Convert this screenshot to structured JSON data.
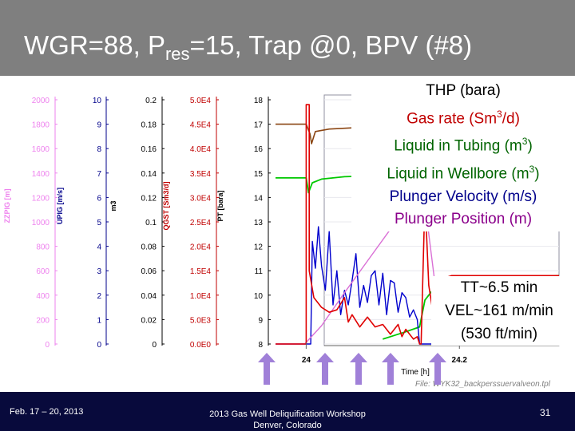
{
  "slide": {
    "title_main": "WGR=88, P",
    "title_sub": "res",
    "title_rest": "=15, Trap @0, BPV (#8)"
  },
  "legend": [
    {
      "text": "THP (bara)",
      "color": "#000000"
    },
    {
      "text": "Gas rate (Sm",
      "sup": "3",
      "tail": "/d)",
      "color": "#c00000"
    },
    {
      "text": "Liquid in Tubing (m",
      "sup": "3",
      "tail": ")",
      "color": "#006400"
    },
    {
      "text": "Liquid in Wellbore (m",
      "sup": "3",
      "tail": ")",
      "color": "#006400"
    },
    {
      "text": "Plunger Velocity (m/s)",
      "color": "#00008b"
    },
    {
      "text": "Plunger Position (m)",
      "color": "#8b008b"
    }
  ],
  "annotation": {
    "line1": "TT~6.5 min",
    "line2": "VEL~161 m/min",
    "line3": "(530 ft/min)"
  },
  "file_label": "File: WYK32_backperssuervalveon.tpl",
  "footer": {
    "date": "Feb. 17 – 20, 2013",
    "workshop": "2013 Gas Well Deliquification Workshop",
    "location": "Denver, Colorado",
    "page": "31"
  },
  "colors": {
    "header_bg": "#7f7f7f",
    "footer_bg": "#080a3c",
    "zzpig": "#ee82ee",
    "upig": "#00008b",
    "m3": "#000000",
    "qgst": "#c00000",
    "pt": "#000000",
    "thp": "#8b4513",
    "gas": "#e00000",
    "liquid": "#00c800",
    "velocity": "#0000cd",
    "position": "#da70d6",
    "arrow": "#a080d8"
  },
  "chart_data": {
    "type": "line",
    "xlabel": "Time [h]",
    "x_ticks": [
      "24",
      "24.2"
    ],
    "xlim": [
      23.96,
      24.33
    ],
    "axes": [
      {
        "id": "zzpig",
        "label": "ZZPIG [m]",
        "ticks": [
          "0",
          "200",
          "400",
          "600",
          "800",
          "1000",
          "1200",
          "1400",
          "1600",
          "1800",
          "2000"
        ],
        "range": [
          0,
          2000
        ]
      },
      {
        "id": "upig",
        "label": "UPIG [m/s]",
        "ticks": [
          "0",
          "1",
          "2",
          "3",
          "4",
          "5",
          "6",
          "7",
          "8",
          "9",
          "10"
        ],
        "range": [
          0,
          10
        ]
      },
      {
        "id": "m3",
        "label": "m3",
        "ticks": [
          "0",
          "0.02",
          "0.04",
          "0.06",
          "0.08",
          "0.1",
          "0.12",
          "0.14",
          "0.16",
          "0.18",
          "0.2"
        ],
        "range": [
          0,
          0.2
        ]
      },
      {
        "id": "qgst",
        "label": "QGST [Sm3/d]",
        "ticks": [
          "0.0E0",
          "5.0E3",
          "1.0E4",
          "1.5E4",
          "2.0E4",
          "2.5E4",
          "3.0E4",
          "3.5E4",
          "4.0E4",
          "4.5E4",
          "5.0E4"
        ],
        "range": [
          0,
          50000
        ]
      },
      {
        "id": "pt",
        "label": "PT [bara]",
        "ticks": [
          "8",
          "9",
          "10",
          "11",
          "12",
          "13",
          "14",
          "15",
          "16",
          "17",
          "18"
        ],
        "range": [
          8,
          18
        ]
      }
    ],
    "series": [
      {
        "id": "thp",
        "axis": "pt",
        "points": [
          [
            23.96,
            17
          ],
          [
            24.0,
            17
          ],
          [
            24.005,
            16.6
          ],
          [
            24.007,
            16.2
          ],
          [
            24.012,
            16.7
          ],
          [
            24.03,
            16.8
          ],
          [
            24.06,
            16.85
          ],
          [
            24.1,
            16.9
          ],
          [
            24.15,
            16.95
          ],
          [
            24.19,
            17.0
          ],
          [
            24.2,
            17.2
          ],
          [
            24.22,
            17.3
          ],
          [
            24.26,
            17.3
          ],
          [
            24.33,
            17.3
          ]
        ]
      },
      {
        "id": "liquid_tubing",
        "axis": "pt",
        "points": [
          [
            23.96,
            14.8
          ],
          [
            24.0,
            14.8
          ],
          [
            24.003,
            14.2
          ],
          [
            24.008,
            14.6
          ],
          [
            24.02,
            14.75
          ],
          [
            24.05,
            14.85
          ],
          [
            24.1,
            14.9
          ],
          [
            24.16,
            14.95
          ],
          [
            24.19,
            14.9
          ],
          [
            24.2,
            14.9
          ],
          [
            24.25,
            14.95
          ],
          [
            24.33,
            14.95
          ]
        ]
      },
      {
        "id": "liquid_wellbore",
        "axis": "pt",
        "points": [
          [
            24.1,
            8.2
          ],
          [
            24.11,
            8.3
          ],
          [
            24.13,
            8.5
          ],
          [
            24.148,
            8.7
          ],
          [
            24.155,
            9.8
          ],
          [
            24.165,
            10.2
          ],
          [
            24.18,
            10.45
          ],
          [
            24.2,
            10.6
          ],
          [
            24.25,
            10.75
          ],
          [
            24.33,
            10.8
          ]
        ]
      },
      {
        "id": "plunger_velocity",
        "axis": "upig",
        "points": [
          [
            23.96,
            0
          ],
          [
            24.0,
            0
          ],
          [
            24.006,
            0
          ],
          [
            24.008,
            4.2
          ],
          [
            24.012,
            3.1
          ],
          [
            24.016,
            4.8
          ],
          [
            24.02,
            3.2
          ],
          [
            24.025,
            2.2
          ],
          [
            24.03,
            4.6
          ],
          [
            24.035,
            1.6
          ],
          [
            24.04,
            3.0
          ],
          [
            24.045,
            1.2
          ],
          [
            24.05,
            2.2
          ],
          [
            24.055,
            1.6
          ],
          [
            24.06,
            2.6
          ],
          [
            24.065,
            3.7
          ],
          [
            24.07,
            1.5
          ],
          [
            24.075,
            2.4
          ],
          [
            24.08,
            1.7
          ],
          [
            24.085,
            2.8
          ],
          [
            24.09,
            3.0
          ],
          [
            24.095,
            1.6
          ],
          [
            24.1,
            2.9
          ],
          [
            24.105,
            1.2
          ],
          [
            24.11,
            2.6
          ],
          [
            24.115,
            2.5
          ],
          [
            24.12,
            1.3
          ],
          [
            24.125,
            2.1
          ],
          [
            24.13,
            1.9
          ],
          [
            24.135,
            1.1
          ],
          [
            24.14,
            1.4
          ],
          [
            24.145,
            1.0
          ],
          [
            24.148,
            0
          ],
          [
            24.33,
            0
          ]
        ]
      },
      {
        "id": "plunger_position",
        "axis": "zzpig",
        "points": [
          [
            23.96,
            0
          ],
          [
            23.998,
            0
          ],
          [
            24.02,
            150
          ],
          [
            24.05,
            420
          ],
          [
            24.08,
            680
          ],
          [
            24.11,
            940
          ],
          [
            24.14,
            1200
          ],
          [
            24.15,
            1250
          ],
          [
            24.155,
            1200
          ],
          [
            24.16,
            900
          ],
          [
            24.17,
            400
          ],
          [
            24.175,
            100
          ],
          [
            24.18,
            0
          ],
          [
            24.33,
            0
          ]
        ]
      },
      {
        "id": "gas_rate",
        "axis": "qgst",
        "points": [
          [
            23.96,
            0
          ],
          [
            24.0,
            0
          ],
          [
            24.0,
            49000
          ],
          [
            24.004,
            49000
          ],
          [
            24.004,
            15000
          ],
          [
            24.01,
            9500
          ],
          [
            24.02,
            7500
          ],
          [
            24.03,
            6500
          ],
          [
            24.04,
            7000
          ],
          [
            24.05,
            9500
          ],
          [
            24.055,
            4500
          ],
          [
            24.06,
            6000
          ],
          [
            24.07,
            3500
          ],
          [
            24.08,
            5500
          ],
          [
            24.09,
            3500
          ],
          [
            24.1,
            4000
          ],
          [
            24.11,
            2000
          ],
          [
            24.12,
            4000
          ],
          [
            24.125,
            1500
          ],
          [
            24.13,
            3000
          ],
          [
            24.14,
            1000
          ],
          [
            24.145,
            1500
          ],
          [
            24.148,
            0
          ],
          [
            24.15,
            0
          ],
          [
            24.155,
            30000
          ],
          [
            24.16,
            12000
          ],
          [
            24.165,
            7000
          ],
          [
            24.17,
            11000
          ],
          [
            24.18,
            13500
          ],
          [
            24.19,
            14000
          ],
          [
            24.2,
            14000
          ],
          [
            24.25,
            14000
          ],
          [
            24.33,
            14000
          ]
        ]
      }
    ]
  }
}
